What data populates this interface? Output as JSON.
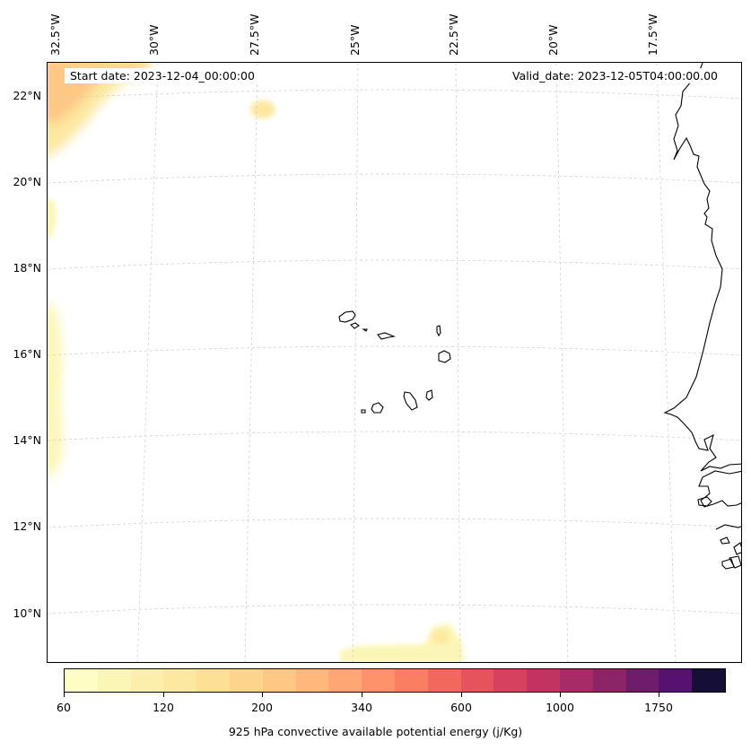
{
  "info": {
    "start_date": "Start date: 2023-12-04_00:00:00",
    "valid_date": "Valid_date: 2023-12-05T04:00:00.00"
  },
  "map": {
    "longitude_labels": [
      "32.5°W",
      "30°W",
      "27.5°W",
      "25°W",
      "22.5°W",
      "20°W",
      "17.5°W"
    ],
    "latitude_labels": [
      "22°N",
      "20°N",
      "18°N",
      "16°N",
      "14°N",
      "12°N",
      "10°N"
    ],
    "land_color": "#ffffff",
    "coast_color": "#000000",
    "grid_color": "#cccccc"
  },
  "colorbar": {
    "title": "925 hPa convective available potential energy (j/Kg)",
    "tick_labels": [
      "60",
      "120",
      "200",
      "340",
      "600",
      "1000",
      "1750"
    ],
    "colors": [
      "#fdfdc4",
      "#fcf6b6",
      "#fcefab",
      "#fde8a0",
      "#fddf96",
      "#fed48c",
      "#fec784",
      "#feb87c",
      "#fea674",
      "#fe926a",
      "#f97e62",
      "#f2685c",
      "#e7535c",
      "#d6415f",
      "#c13462",
      "#a72b66",
      "#8c2468",
      "#701c6c",
      "#561171",
      "#150e37"
    ]
  }
}
